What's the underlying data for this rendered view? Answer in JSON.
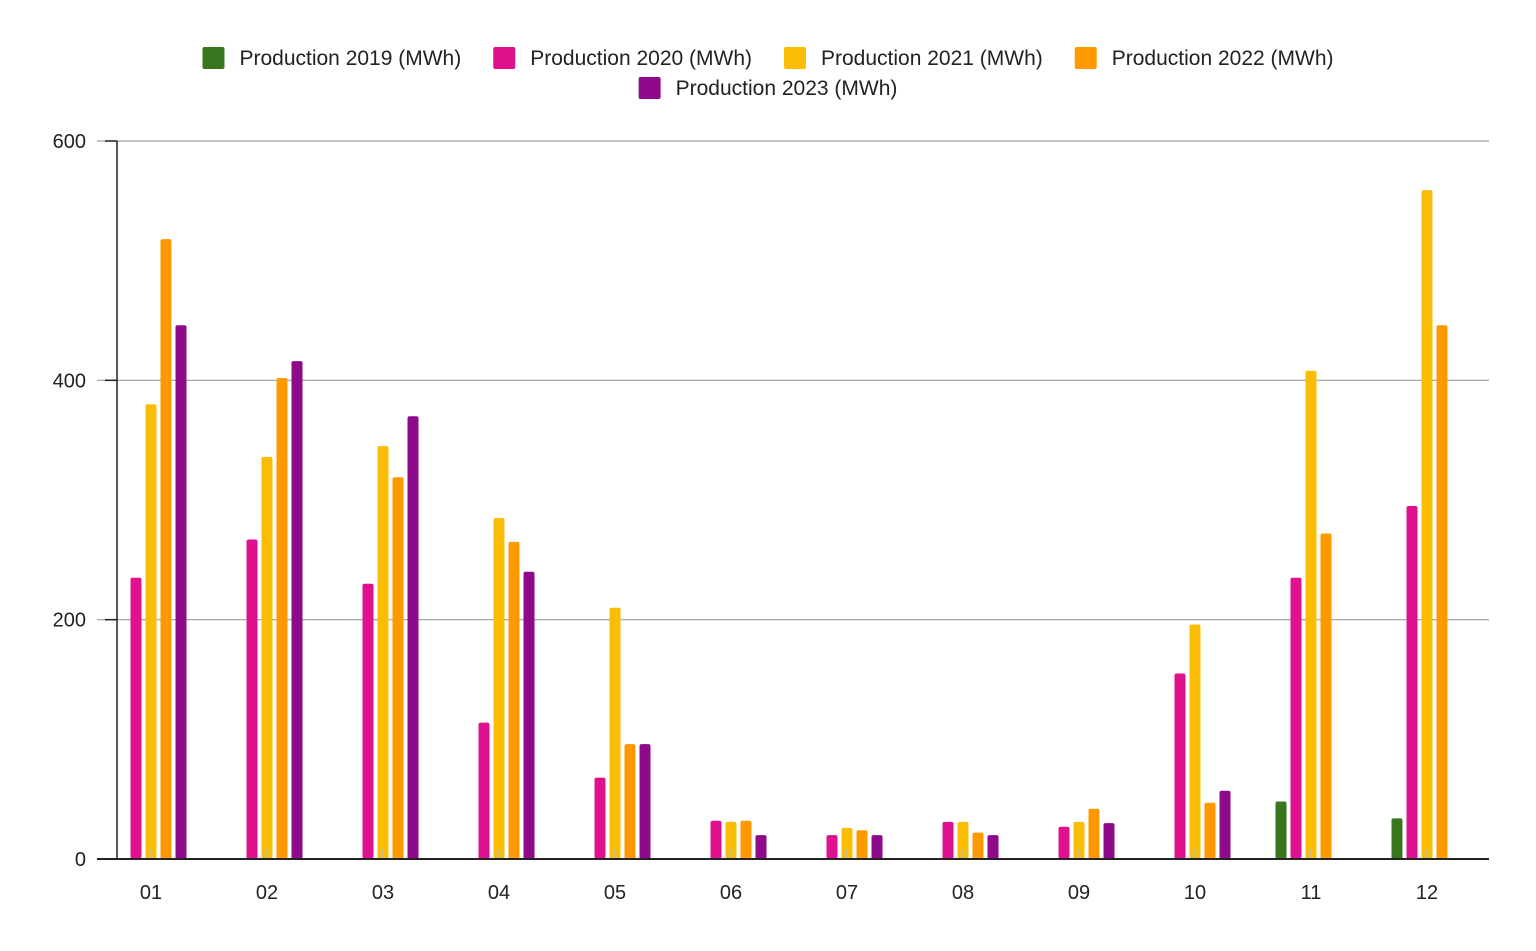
{
  "chart_data": {
    "type": "bar",
    "categories": [
      "01",
      "02",
      "03",
      "04",
      "05",
      "06",
      "07",
      "08",
      "09",
      "10",
      "11",
      "12"
    ],
    "ylim": [
      0,
      600
    ],
    "y_ticks": [
      "0",
      "200",
      "400",
      "600"
    ],
    "grid": true,
    "legend_position": "top-center",
    "series": [
      {
        "name": "Production 2019 (MWh)",
        "color": "#38761d",
        "values": [
          null,
          null,
          null,
          null,
          null,
          null,
          null,
          null,
          null,
          null,
          48,
          34
        ]
      },
      {
        "name": "Production 2020 (MWh)",
        "color": "#e0118c",
        "values": [
          235,
          267,
          230,
          114,
          68,
          32,
          20,
          31,
          27,
          155,
          235,
          295
        ]
      },
      {
        "name": "Production 2021 (MWh)",
        "color": "#fbbc04",
        "values": [
          380,
          336,
          345,
          285,
          210,
          31,
          26,
          31,
          31,
          196,
          408,
          559
        ]
      },
      {
        "name": "Production 2022 (MWh)",
        "color": "#ff9900",
        "values": [
          518,
          402,
          319,
          265,
          96,
          32,
          24,
          22,
          42,
          47,
          272,
          446
        ]
      },
      {
        "name": "Production 2023 (MWh)",
        "color": "#8e0a8b",
        "values": [
          446,
          416,
          370,
          240,
          96,
          20,
          20,
          20,
          30,
          57,
          null,
          null
        ]
      }
    ]
  }
}
